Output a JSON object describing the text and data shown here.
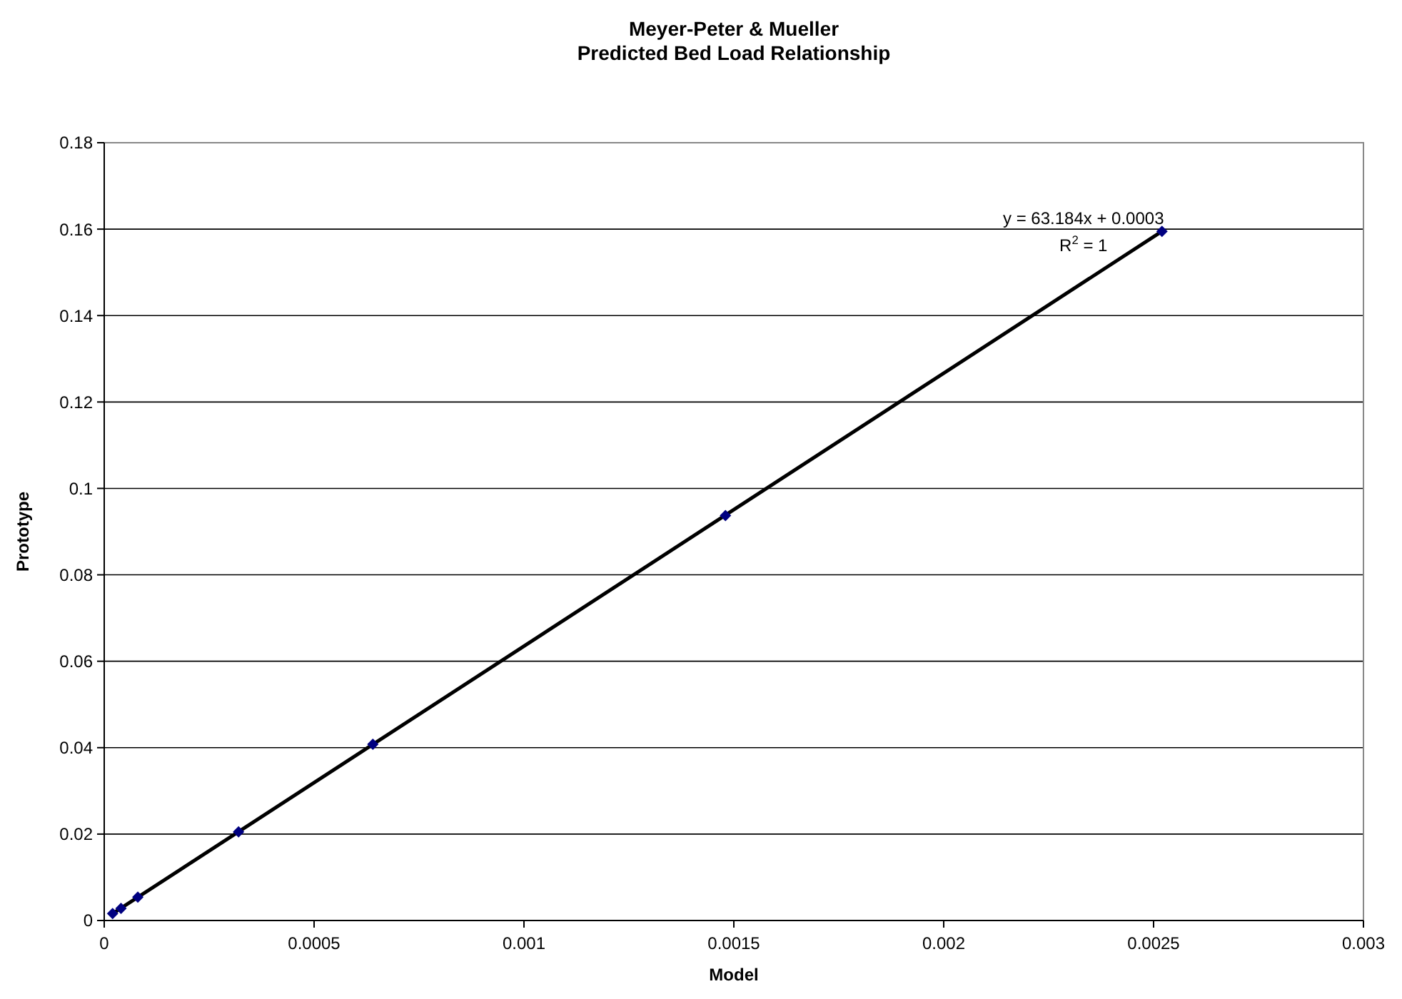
{
  "chart_data": {
    "type": "scatter",
    "title": "Meyer-Peter & Mueller",
    "subtitle": "Predicted Bed Load Relationship",
    "xlabel": "Model",
    "ylabel": "Prototype",
    "series": [
      {
        "color": "#000080",
        "marker": "diamond",
        "x": [
          2e-05,
          4e-05,
          8e-05,
          0.00032,
          0.00064,
          0.00148,
          0.00252
        ],
        "values": [
          0.0016,
          0.0028,
          0.0054,
          0.0205,
          0.0408,
          0.0937,
          0.1595
        ]
      },
      {
        "type": "line",
        "color": "#000000",
        "marker": "none",
        "line_style": "solid",
        "x": [
          2e-05,
          0.00252
        ],
        "values": [
          0.0016,
          0.1595
        ]
      }
    ],
    "annotations": [
      "y = 63.184x + 0.0003",
      "R$^{2}$ = 1"
    ],
    "xlim": [
      0,
      0.003
    ],
    "xticks": [
      0,
      0.0005,
      0.001,
      0.0015,
      0.002,
      0.0025,
      0.003
    ],
    "ylim": [
      0,
      0.18
    ],
    "yticks": [
      0,
      0.02,
      0.04,
      0.06,
      0.08,
      0.1,
      0.12,
      0.14,
      0.16,
      0.18
    ],
    "grid": "y"
  }
}
